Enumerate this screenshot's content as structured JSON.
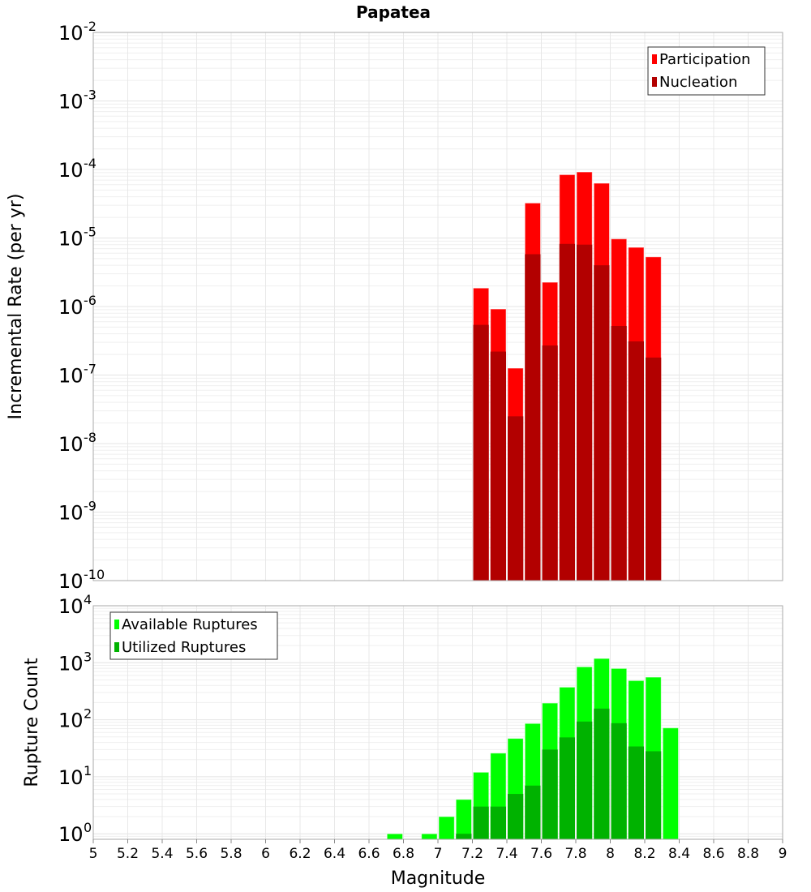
{
  "chart_data": [
    {
      "type": "bar",
      "title": "Papatea",
      "xlabel": "Magnitude",
      "ylabel": "Incremental Rate (per yr)",
      "yscale": "log",
      "ylim": [
        1e-10,
        0.01
      ],
      "xlim": [
        5,
        9
      ],
      "bin_width": 0.1,
      "grid": true,
      "legend_position": "top-right",
      "x": [
        7.25,
        7.35,
        7.45,
        7.55,
        7.65,
        7.75,
        7.85,
        7.95,
        8.05,
        8.15,
        8.25
      ],
      "series": [
        {
          "name": "Participation",
          "color": "#ff0000",
          "values": [
            1.86e-06,
            9.2e-07,
            1.26e-07,
            3.24e-05,
            2.26e-06,
            8.4e-05,
            9.2e-05,
            6.3e-05,
            9.7e-06,
            7.3e-06,
            5.3e-06
          ]
        },
        {
          "name": "Nucleation",
          "color": "#b20000",
          "values": [
            5.4e-07,
            2.2e-07,
            2.5e-08,
            5.8e-06,
            2.7e-07,
            8.2e-06,
            8e-06,
            4e-06,
            5.2e-07,
            3.1e-07,
            1.8e-07
          ]
        }
      ],
      "ytick_exponents": [
        "-2",
        "-3",
        "-4",
        "-5",
        "-6",
        "-7",
        "-8",
        "-9",
        "-10"
      ]
    },
    {
      "type": "bar",
      "xlabel": "Magnitude",
      "ylabel": "Rupture Count",
      "yscale": "log",
      "ylim": [
        0.8,
        10000
      ],
      "xlim": [
        5,
        9
      ],
      "bin_width": 0.1,
      "grid": true,
      "legend_position": "top-left",
      "x": [
        6.75,
        6.85,
        6.95,
        7.05,
        7.15,
        7.25,
        7.35,
        7.45,
        7.55,
        7.65,
        7.75,
        7.85,
        7.95,
        8.05,
        8.15,
        8.25,
        8.35
      ],
      "series": [
        {
          "name": "Available Ruptures",
          "color": "#00ff00",
          "values": [
            1,
            0,
            1,
            2,
            4,
            12,
            26,
            47,
            86,
            196,
            373,
            848,
            1188,
            794,
            486,
            559,
            72
          ]
        },
        {
          "name": "Utilized Ruptures",
          "color": "#00b200",
          "values": [
            0,
            0,
            0,
            0,
            1,
            3,
            3,
            5,
            7,
            30,
            49,
            93,
            157,
            87,
            34,
            28,
            0
          ]
        }
      ],
      "ytick_exponents": [
        "4",
        "3",
        "2",
        "1",
        "0"
      ],
      "xticks": [
        "5",
        "5.2",
        "5.4",
        "5.6",
        "5.8",
        "6",
        "6.2",
        "6.4",
        "6.6",
        "6.8",
        "7",
        "7.2",
        "7.4",
        "7.6",
        "7.8",
        "8",
        "8.2",
        "8.4",
        "8.6",
        "8.8",
        "9"
      ]
    }
  ]
}
